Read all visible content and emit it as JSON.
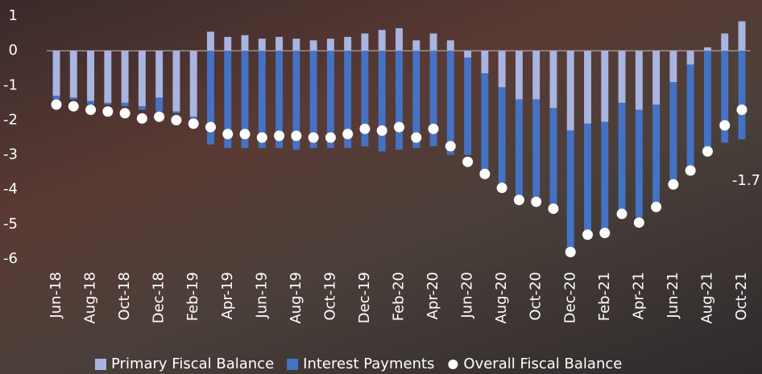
{
  "chart_data": {
    "type": "bar",
    "stacked": true,
    "categories": [
      "Jun-18",
      null,
      "Aug-18",
      null,
      "Oct-18",
      null,
      "Dec-18",
      null,
      "Feb-19",
      null,
      "Apr-19",
      null,
      "Jun-19",
      null,
      "Aug-19",
      null,
      "Oct-19",
      null,
      "Dec-19",
      null,
      "Feb-20",
      null,
      "Apr-20",
      null,
      "Jun-20",
      null,
      "Aug-20",
      null,
      "Oct-20",
      null,
      "Dec-20",
      null,
      "Feb-21",
      null,
      "Apr-21",
      null,
      "Jun-21",
      null,
      "Aug-21",
      null,
      "Oct-21"
    ],
    "series": [
      {
        "name": "Primary Fiscal Balance",
        "color": "#a9b4e0",
        "type": "bar",
        "values": [
          -1.3,
          -1.35,
          -1.45,
          -1.5,
          -1.5,
          -1.6,
          -1.35,
          -1.75,
          -1.9,
          0.55,
          0.4,
          0.45,
          0.35,
          0.4,
          0.35,
          0.3,
          0.35,
          0.4,
          0.5,
          0.6,
          0.65,
          0.3,
          0.5,
          0.3,
          -0.2,
          -0.65,
          -1.05,
          -1.4,
          -1.4,
          -1.65,
          -2.3,
          -2.1,
          -2.05,
          -1.5,
          -1.7,
          -1.55,
          -0.9,
          -0.4,
          0.1,
          0.5,
          0.85
        ]
      },
      {
        "name": "Interest Payments",
        "color": "#4472c4",
        "type": "bar",
        "values": [
          -0.1,
          -0.05,
          -0.1,
          -0.05,
          -0.1,
          -0.1,
          -0.4,
          -0.05,
          -0.1,
          -2.7,
          -2.8,
          -2.8,
          -2.8,
          -2.8,
          -2.85,
          -2.8,
          -2.8,
          -2.8,
          -2.75,
          -2.9,
          -2.85,
          -2.8,
          -2.75,
          -3.0,
          -2.8,
          -2.8,
          -2.75,
          -2.8,
          -2.8,
          -2.8,
          -3.5,
          -3.1,
          -3.1,
          -3.1,
          -3.1,
          -2.85,
          -2.85,
          -2.95,
          -2.9,
          -2.65,
          -2.55
        ]
      },
      {
        "name": "Overall Fiscal Balance",
        "color": "#ffffff",
        "type": "scatter",
        "values": [
          -1.55,
          -1.6,
          -1.7,
          -1.75,
          -1.8,
          -1.95,
          -1.9,
          -2.0,
          -2.1,
          -2.2,
          -2.4,
          -2.4,
          -2.5,
          -2.45,
          -2.45,
          -2.5,
          -2.5,
          -2.4,
          -2.25,
          -2.3,
          -2.2,
          -2.5,
          -2.25,
          -2.75,
          -3.2,
          -3.55,
          -3.95,
          -4.3,
          -4.35,
          -4.55,
          -5.8,
          -5.3,
          -5.25,
          -4.7,
          -4.95,
          -4.5,
          -3.85,
          -3.45,
          -2.9,
          -2.15,
          -1.7
        ]
      }
    ],
    "ylim": [
      -6,
      1
    ],
    "yticks": [
      -6,
      -5,
      -4,
      -3,
      -2,
      -1,
      0,
      1
    ],
    "legend": "bottom"
  }
}
